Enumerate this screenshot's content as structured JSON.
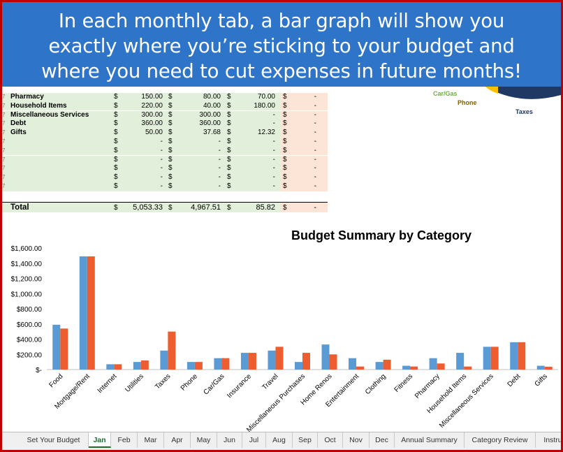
{
  "banner": {
    "lines": [
      "In each monthly tab, a bar graph will show you",
      "exactly where you’re sticking to your budget and",
      "where you need to cut expenses in future months!"
    ]
  },
  "table": {
    "currency": "$",
    "rows": [
      {
        "category": "Pharmacy",
        "budget": "150.00",
        "actual": "80.00",
        "diff": "70.00",
        "over": "-"
      },
      {
        "category": "Household Items",
        "budget": "220.00",
        "actual": "40.00",
        "diff": "180.00",
        "over": "-"
      },
      {
        "category": "Miscellaneous Services",
        "budget": "300.00",
        "actual": "300.00",
        "diff": "-",
        "over": "-"
      },
      {
        "category": "Debt",
        "budget": "360.00",
        "actual": "360.00",
        "diff": "-",
        "over": "-"
      },
      {
        "category": "Gifts",
        "budget": "50.00",
        "actual": "37.68",
        "diff": "12.32",
        "over": "-"
      },
      {
        "category": "",
        "budget": "-",
        "actual": "-",
        "diff": "-",
        "over": "-"
      },
      {
        "category": "",
        "budget": "-",
        "actual": "-",
        "diff": "-",
        "over": "-"
      },
      {
        "category": "",
        "budget": "-",
        "actual": "-",
        "diff": "-",
        "over": "-"
      },
      {
        "category": "",
        "budget": "-",
        "actual": "-",
        "diff": "-",
        "over": "-"
      },
      {
        "category": "",
        "budget": "-",
        "actual": "-",
        "diff": "-",
        "over": "-"
      },
      {
        "category": "",
        "budget": "-",
        "actual": "-",
        "diff": "-",
        "over": "-"
      }
    ],
    "total": {
      "label": "Total",
      "budget": "5,053.33",
      "actual": "4,967.51",
      "diff": "85.82",
      "over": "-"
    }
  },
  "pie_labels": {
    "car_gas": "Car/Gas",
    "phone": "Phone",
    "taxes": "Taxes"
  },
  "colors": {
    "banner": "#2e74c9",
    "budget_series": "#5b9bd5",
    "actual_series": "#ed5d2f",
    "table_green": "#e2efda",
    "table_peach": "#fce4d6",
    "frame": "#c00000",
    "active_tab": "#1e6b2e"
  },
  "chart_data": {
    "type": "bar",
    "title": "Budget Summary by Category",
    "categories": [
      "Food",
      "Mortgage/Rent",
      "Internet",
      "Utilities",
      "Taxes",
      "Phone",
      "Car/Gas",
      "Insurance",
      "Travel",
      "Miscellaneous Purchases",
      "Home Renos",
      "Entertainment",
      "Clothing",
      "Fitness",
      "Pharmacy",
      "Household Items",
      "Miscellaneous Services",
      "Debt",
      "Gifts"
    ],
    "series": [
      {
        "values": [
          590,
          1490,
          70,
          100,
          250,
          100,
          150,
          220,
          250,
          100,
          330,
          150,
          100,
          50,
          150,
          220,
          300,
          360,
          50
        ]
      },
      {
        "values": [
          540,
          1490,
          70,
          120,
          500,
          100,
          150,
          220,
          300,
          220,
          200,
          40,
          130,
          40,
          80,
          40,
          300,
          360,
          37.68
        ]
      }
    ],
    "ylim": [
      0,
      1600
    ],
    "yticks": [
      "$-",
      "$200.00",
      "$400.00",
      "$600.00",
      "$800.00",
      "$1,000.00",
      "$1,200.00",
      "$1,400.00",
      "$1,600.00"
    ],
    "grid": false,
    "legend": "none"
  },
  "tabs": [
    {
      "label": "Set Your Budget",
      "active": false
    },
    {
      "label": "Jan",
      "active": true
    },
    {
      "label": "Feb",
      "active": false
    },
    {
      "label": "Mar",
      "active": false
    },
    {
      "label": "Apr",
      "active": false
    },
    {
      "label": "May",
      "active": false
    },
    {
      "label": "Jun",
      "active": false
    },
    {
      "label": "Jul",
      "active": false
    },
    {
      "label": "Aug",
      "active": false
    },
    {
      "label": "Sep",
      "active": false
    },
    {
      "label": "Oct",
      "active": false
    },
    {
      "label": "Nov",
      "active": false
    },
    {
      "label": "Dec",
      "active": false
    },
    {
      "label": "Annual Summary",
      "active": false
    },
    {
      "label": "Category Review",
      "active": false
    },
    {
      "label": "Instru",
      "active": false
    }
  ]
}
